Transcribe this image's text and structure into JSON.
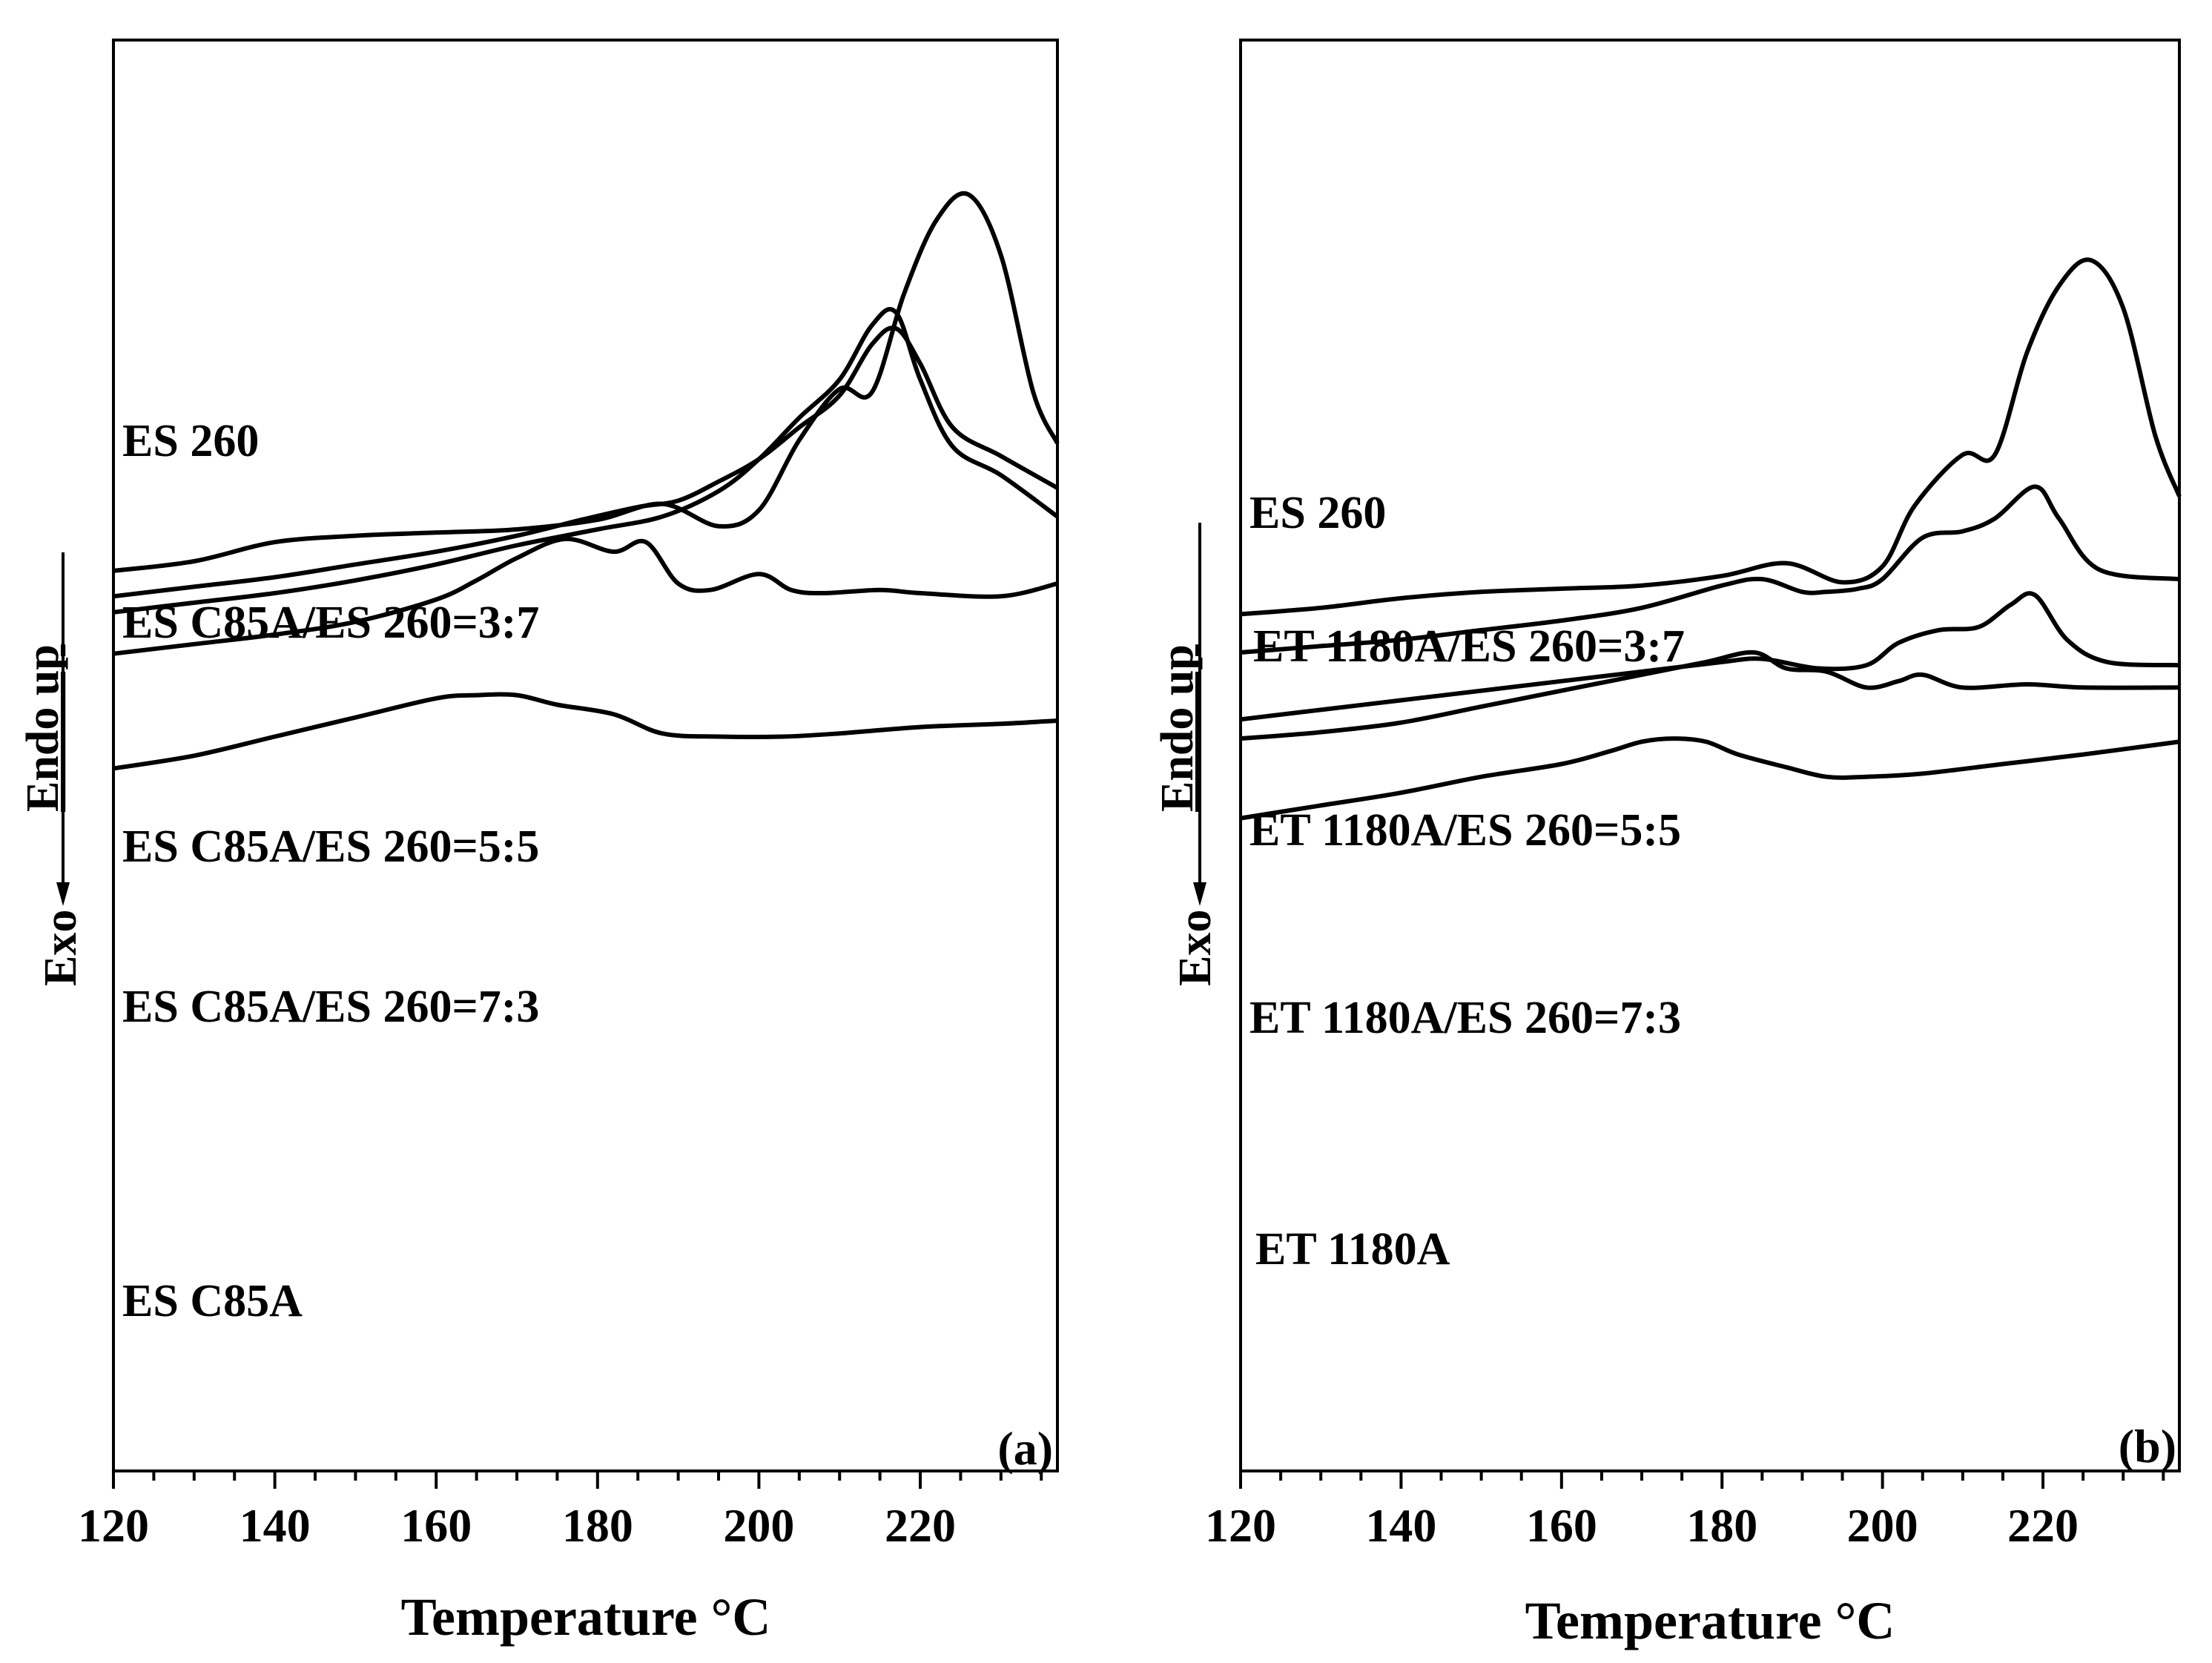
{
  "figure": {
    "ylabel_exo": "Exo",
    "ylabel_endo": "Endo up"
  },
  "chart_data": [
    {
      "type": "line",
      "panel_label": "(a)",
      "xlabel": "Temperature °C",
      "ylabel": "Exo    Endo up",
      "xlim": [
        120,
        237
      ],
      "xticks": [
        "120",
        "140",
        "160",
        "180",
        "200",
        "220"
      ],
      "y_axis": "heat flow (a.u., stacked curves, no scale)",
      "series": [
        {
          "name": "ES 260",
          "points": [
            [
              120,
              0.07
            ],
            [
              130,
              0.1
            ],
            [
              140,
              0.16
            ],
            [
              150,
              0.18
            ],
            [
              160,
              0.19
            ],
            [
              170,
              0.2
            ],
            [
              180,
              0.23
            ],
            [
              188,
              0.28
            ],
            [
              195,
              0.21
            ],
            [
              200,
              0.26
            ],
            [
              205,
              0.48
            ],
            [
              210,
              0.64
            ],
            [
              214,
              0.63
            ],
            [
              218,
              0.94
            ],
            [
              222,
              1.17
            ],
            [
              226,
              1.25
            ],
            [
              230,
              1.06
            ],
            [
              234,
              0.63
            ],
            [
              237,
              0.47
            ]
          ]
        },
        {
          "name": "ES C85A/ES 260=3:7",
          "points": [
            [
              120,
              -0.01
            ],
            [
              130,
              0.02
            ],
            [
              140,
              0.05
            ],
            [
              150,
              0.09
            ],
            [
              160,
              0.13
            ],
            [
              170,
              0.18
            ],
            [
              178,
              0.23
            ],
            [
              185,
              0.27
            ],
            [
              190,
              0.29
            ],
            [
              195,
              0.35
            ],
            [
              200,
              0.42
            ],
            [
              205,
              0.52
            ],
            [
              210,
              0.62
            ],
            [
              214,
              0.78
            ],
            [
              217,
              0.83
            ],
            [
              220,
              0.72
            ],
            [
              224,
              0.52
            ],
            [
              230,
              0.43
            ],
            [
              237,
              0.33
            ]
          ]
        },
        {
          "name": "ES C85A/ES 260=5:5",
          "points": [
            [
              120,
              -0.06
            ],
            [
              130,
              -0.03
            ],
            [
              140,
              0.0
            ],
            [
              150,
              0.04
            ],
            [
              160,
              0.09
            ],
            [
              170,
              0.15
            ],
            [
              180,
              0.2
            ],
            [
              188,
              0.24
            ],
            [
              195,
              0.32
            ],
            [
              200,
              0.42
            ],
            [
              205,
              0.55
            ],
            [
              210,
              0.67
            ],
            [
              214,
              0.84
            ],
            [
              217,
              0.88
            ],
            [
              220,
              0.67
            ],
            [
              224,
              0.46
            ],
            [
              230,
              0.37
            ],
            [
              237,
              0.24
            ]
          ]
        },
        {
          "name": "ES C85A/ES 260=7:3",
          "points": [
            [
              120,
              -0.19
            ],
            [
              130,
              -0.16
            ],
            [
              140,
              -0.13
            ],
            [
              150,
              -0.09
            ],
            [
              160,
              -0.02
            ],
            [
              165,
              0.04
            ],
            [
              170,
              0.11
            ],
            [
              176,
              0.17
            ],
            [
              182,
              0.13
            ],
            [
              186,
              0.16
            ],
            [
              190,
              0.03
            ],
            [
              194,
              0.01
            ],
            [
              200,
              0.06
            ],
            [
              204,
              0.01
            ],
            [
              208,
              0.0
            ],
            [
              215,
              0.01
            ],
            [
              220,
              0.0
            ],
            [
              230,
              -0.01
            ],
            [
              237,
              0.03
            ]
          ]
        },
        {
          "name": "ES C85A",
          "points": [
            [
              120,
              -0.55
            ],
            [
              130,
              -0.51
            ],
            [
              140,
              -0.45
            ],
            [
              150,
              -0.39
            ],
            [
              160,
              -0.33
            ],
            [
              165,
              -0.32
            ],
            [
              170,
              -0.32
            ],
            [
              175,
              -0.35
            ],
            [
              182,
              -0.38
            ],
            [
              188,
              -0.44
            ],
            [
              195,
              -0.45
            ],
            [
              203,
              -0.45
            ],
            [
              210,
              -0.44
            ],
            [
              220,
              -0.42
            ],
            [
              230,
              -0.41
            ],
            [
              237,
              -0.4
            ]
          ]
        }
      ]
    },
    {
      "type": "line",
      "panel_label": "(b)",
      "xlabel": "Temperature °C",
      "ylabel": "Exo    Endo up",
      "xlim": [
        120,
        237
      ],
      "xticks": [
        "120",
        "140",
        "160",
        "180",
        "200",
        "220"
      ],
      "y_axis": "heat flow (a.u., stacked curves, no scale)",
      "series": [
        {
          "name": "ES 260",
          "points": [
            [
              120,
              0.12
            ],
            [
              130,
              0.14
            ],
            [
              140,
              0.17
            ],
            [
              150,
              0.19
            ],
            [
              160,
              0.2
            ],
            [
              170,
              0.21
            ],
            [
              180,
              0.24
            ],
            [
              188,
              0.28
            ],
            [
              195,
              0.22
            ],
            [
              200,
              0.27
            ],
            [
              204,
              0.46
            ],
            [
              210,
              0.62
            ],
            [
              214,
              0.62
            ],
            [
              218,
              0.94
            ],
            [
              222,
              1.15
            ],
            [
              226,
              1.23
            ],
            [
              230,
              1.08
            ],
            [
              234,
              0.68
            ],
            [
              237,
              0.49
            ]
          ]
        },
        {
          "name": "ET 1180A/ES 260=3:7",
          "points": [
            [
              120,
              0.0
            ],
            [
              130,
              0.02
            ],
            [
              140,
              0.04
            ],
            [
              150,
              0.07
            ],
            [
              160,
              0.1
            ],
            [
              170,
              0.14
            ],
            [
              180,
              0.21
            ],
            [
              185,
              0.23
            ],
            [
              190,
              0.19
            ],
            [
              193,
              0.19
            ],
            [
              197,
              0.2
            ],
            [
              200,
              0.23
            ],
            [
              205,
              0.36
            ],
            [
              210,
              0.38
            ],
            [
              214,
              0.42
            ],
            [
              219,
              0.52
            ],
            [
              222,
              0.42
            ],
            [
              227,
              0.26
            ],
            [
              237,
              0.23
            ]
          ]
        },
        {
          "name": "ET 1180A/ES 260=5:5",
          "points": [
            [
              120,
              -0.21
            ],
            [
              130,
              -0.18
            ],
            [
              140,
              -0.15
            ],
            [
              150,
              -0.12
            ],
            [
              160,
              -0.09
            ],
            [
              170,
              -0.06
            ],
            [
              180,
              -0.03
            ],
            [
              185,
              -0.02
            ],
            [
              192,
              -0.05
            ],
            [
              198,
              -0.04
            ],
            [
              202,
              0.03
            ],
            [
              207,
              0.07
            ],
            [
              212,
              0.08
            ],
            [
              216,
              0.15
            ],
            [
              219,
              0.18
            ],
            [
              223,
              0.04
            ],
            [
              228,
              -0.03
            ],
            [
              237,
              -0.04
            ]
          ]
        },
        {
          "name": "ET 1180A/ES 260=7:3",
          "points": [
            [
              120,
              -0.27
            ],
            [
              130,
              -0.25
            ],
            [
              140,
              -0.22
            ],
            [
              150,
              -0.17
            ],
            [
              160,
              -0.12
            ],
            [
              170,
              -0.07
            ],
            [
              178,
              -0.03
            ],
            [
              184,
              0.0
            ],
            [
              188,
              -0.05
            ],
            [
              193,
              -0.06
            ],
            [
              198,
              -0.11
            ],
            [
              202,
              -0.09
            ],
            [
              205,
              -0.07
            ],
            [
              210,
              -0.11
            ],
            [
              218,
              -0.1
            ],
            [
              225,
              -0.11
            ],
            [
              237,
              -0.11
            ]
          ]
        },
        {
          "name": "ET 1180A",
          "points": [
            [
              120,
              -0.52
            ],
            [
              130,
              -0.48
            ],
            [
              140,
              -0.44
            ],
            [
              150,
              -0.39
            ],
            [
              160,
              -0.35
            ],
            [
              166,
              -0.31
            ],
            [
              170,
              -0.28
            ],
            [
              174,
              -0.27
            ],
            [
              178,
              -0.28
            ],
            [
              182,
              -0.32
            ],
            [
              188,
              -0.36
            ],
            [
              193,
              -0.39
            ],
            [
              198,
              -0.39
            ],
            [
              205,
              -0.38
            ],
            [
              215,
              -0.35
            ],
            [
              225,
              -0.32
            ],
            [
              237,
              -0.28
            ]
          ]
        }
      ]
    }
  ]
}
